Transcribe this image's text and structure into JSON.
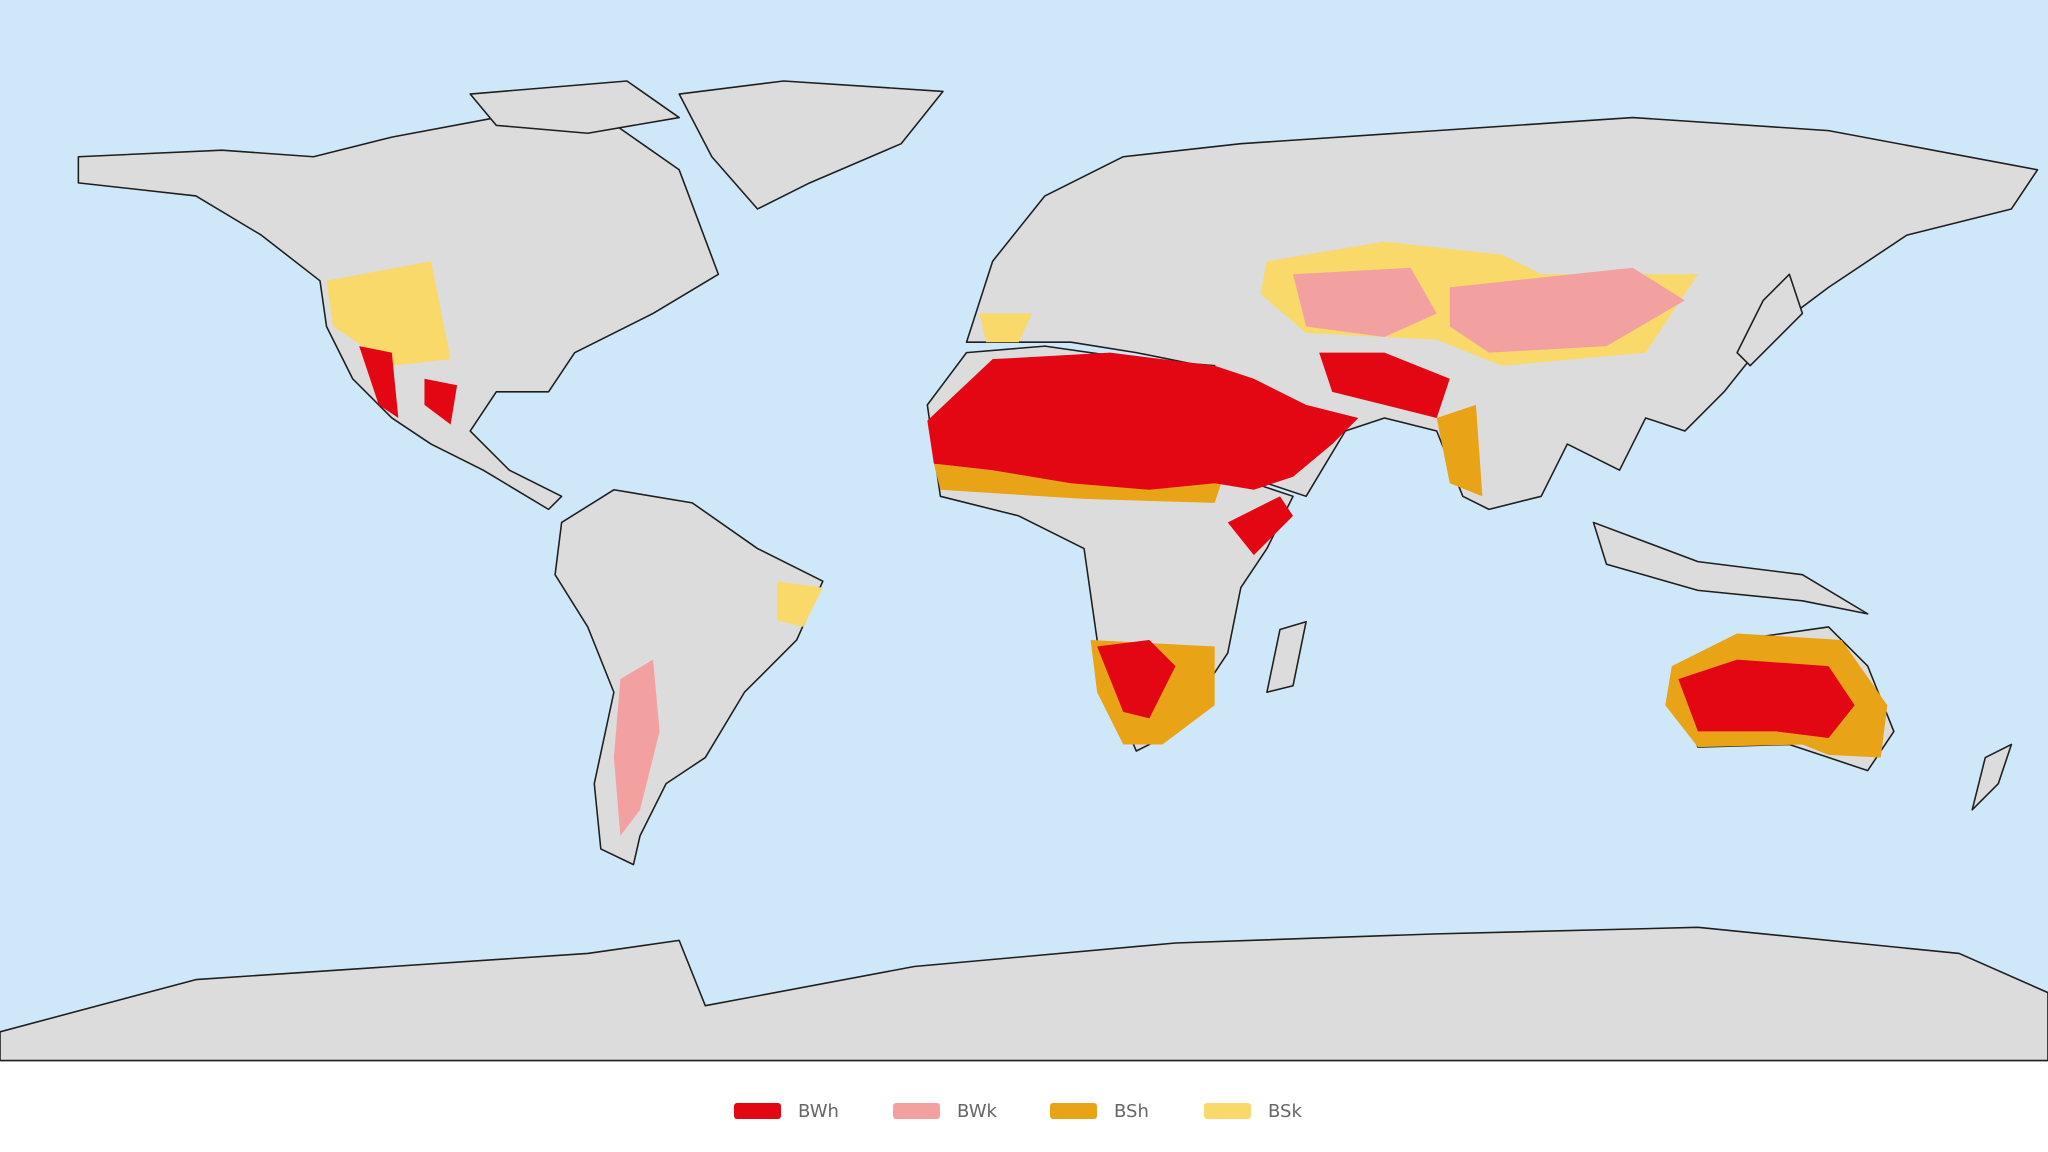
{
  "legend": {
    "items": [
      {
        "label": "BWh",
        "color": "#e30613"
      },
      {
        "label": "BWk",
        "color": "#f3a0a0"
      },
      {
        "label": "BSh",
        "color": "#e8a317"
      },
      {
        "label": "BSk",
        "color": "#f8d96a"
      }
    ]
  }
}
